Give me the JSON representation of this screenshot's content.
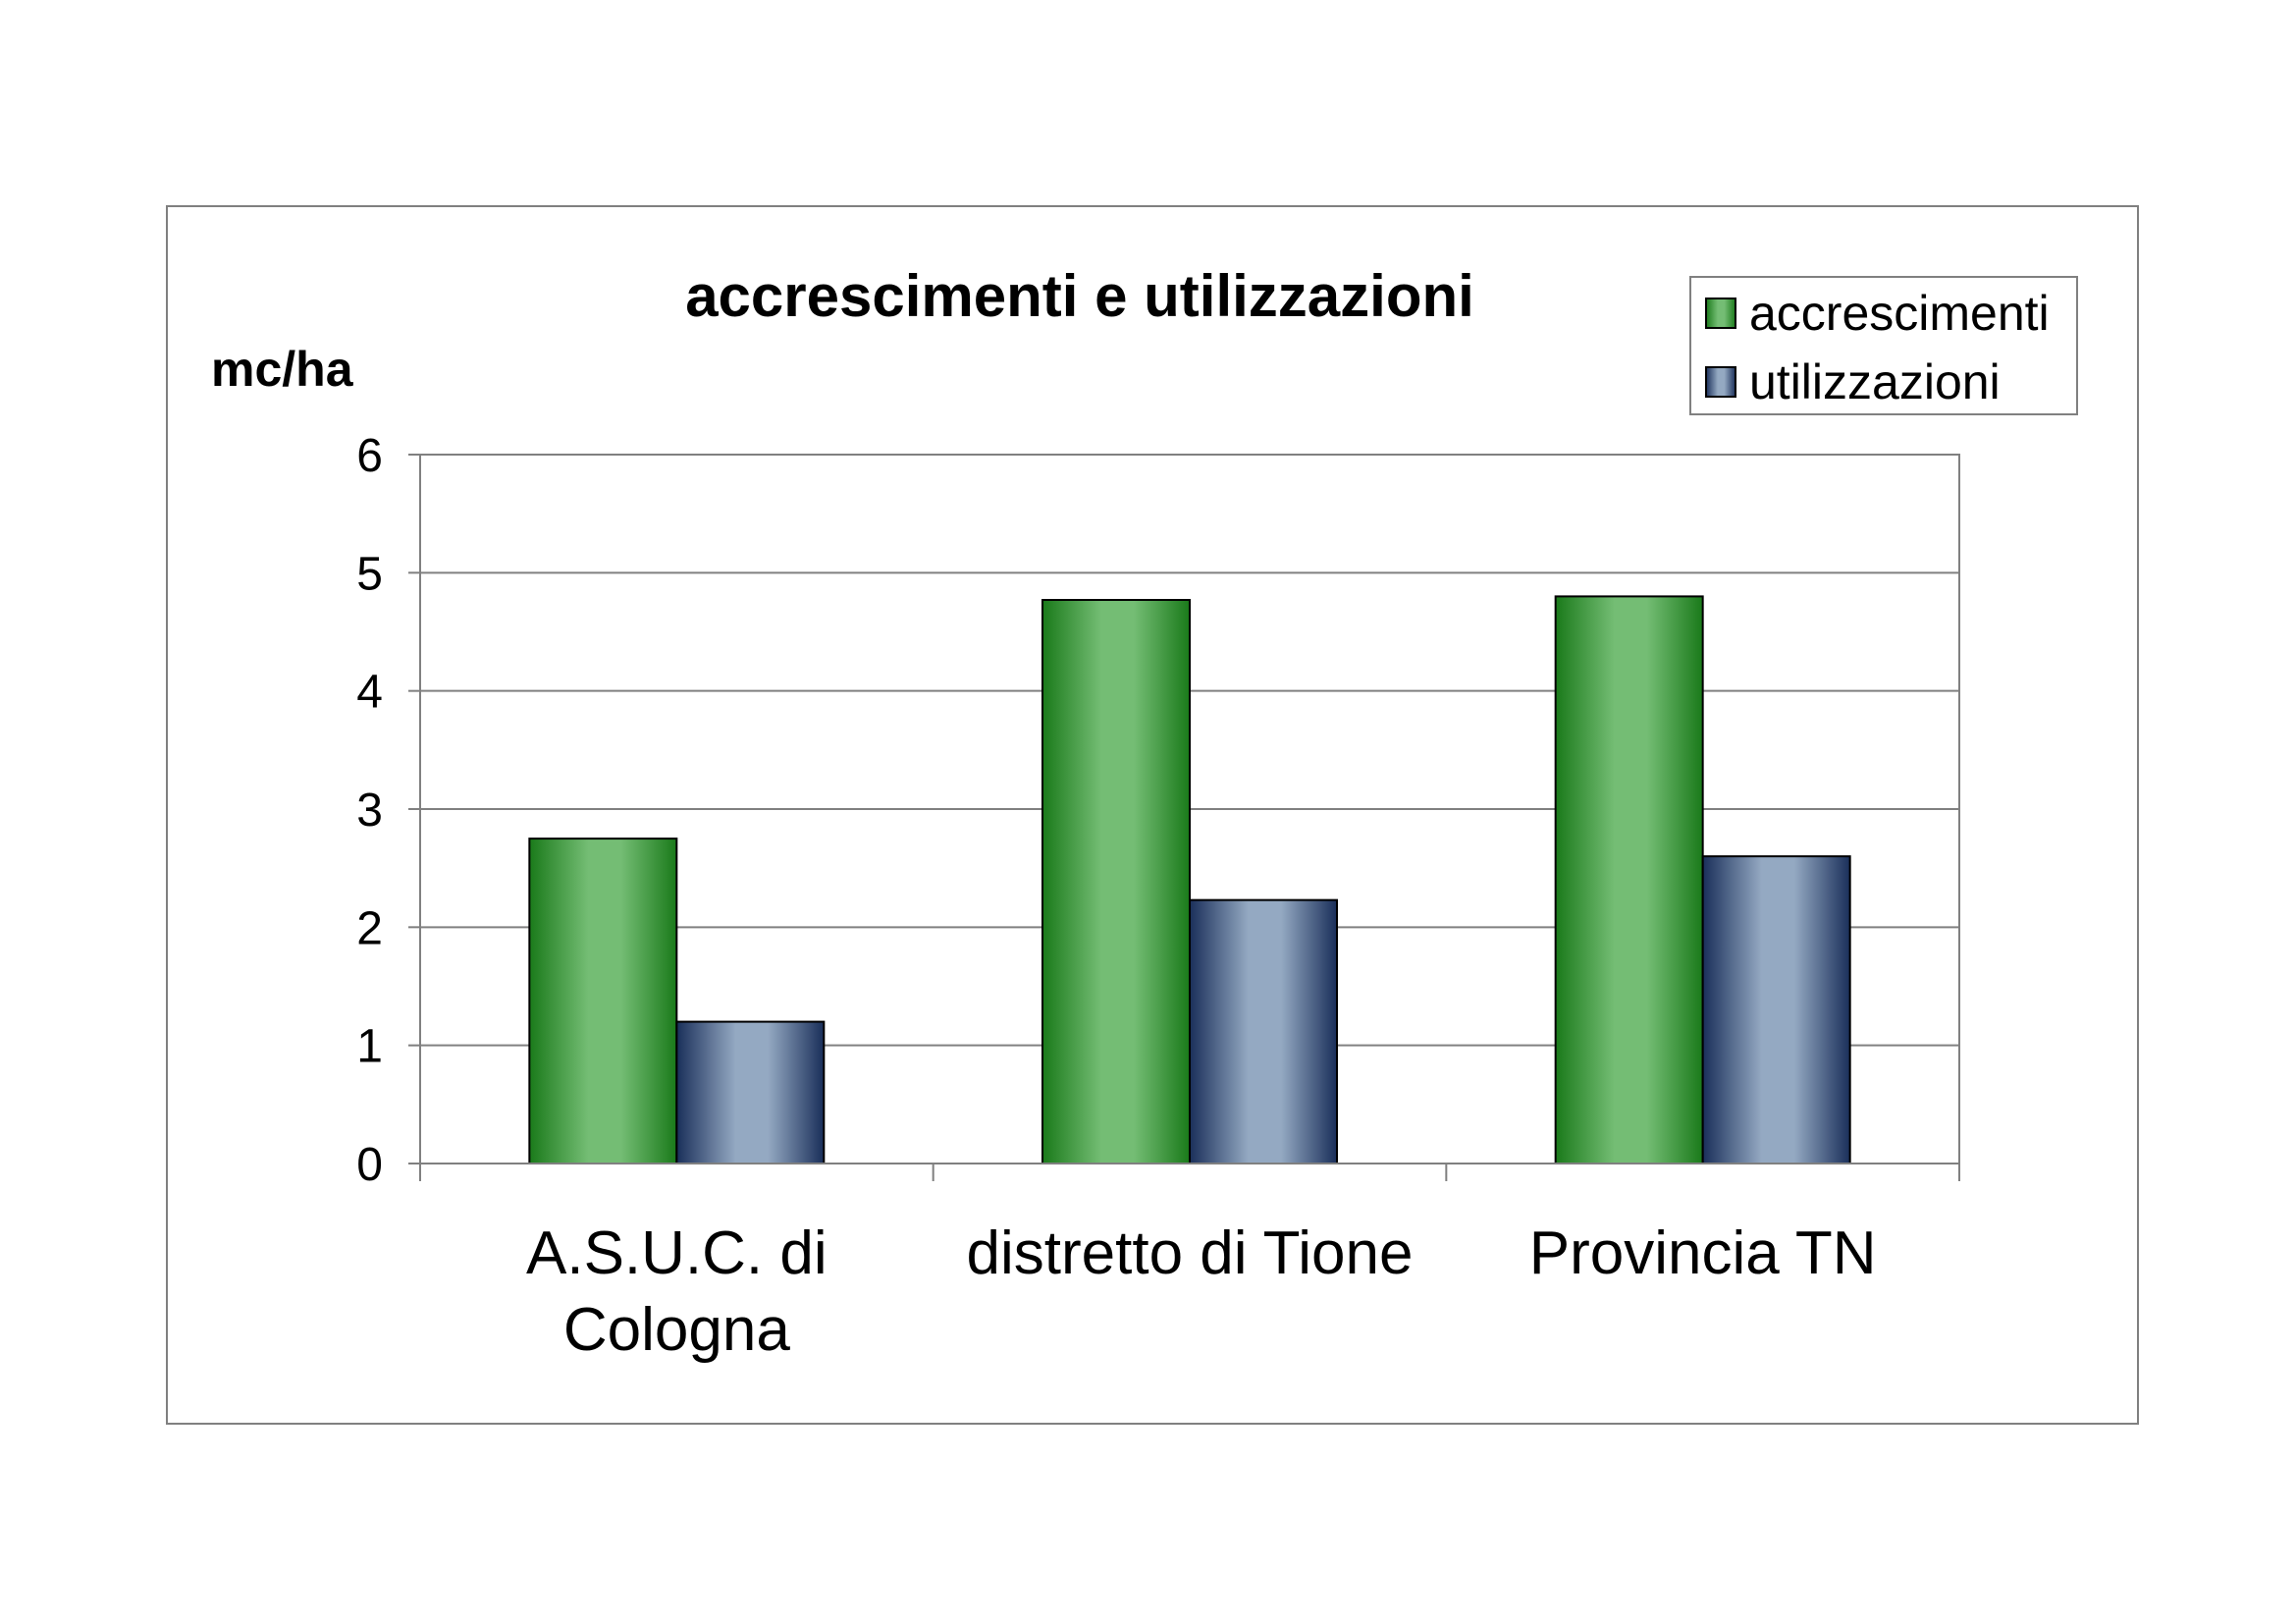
{
  "chart_data": {
    "type": "bar",
    "title": "accrescimenti e utilizzazioni",
    "ylabel": "mc/ha",
    "xlabel": "",
    "ylim": [
      0,
      6
    ],
    "yticks": [
      0,
      1,
      2,
      3,
      4,
      5,
      6
    ],
    "grid": true,
    "legend_position": "top-right",
    "categories": [
      [
        "A.S.U.C. di",
        "Cologna"
      ],
      [
        "distretto di Tione"
      ],
      [
        "Provincia TN"
      ]
    ],
    "series": [
      {
        "name": "accrescimenti",
        "values": [
          2.75,
          4.77,
          4.8
        ],
        "color_dark": "#1a7a1a",
        "color_light": "#74bd74"
      },
      {
        "name": "utilizzazioni",
        "values": [
          1.2,
          2.23,
          2.6
        ],
        "color_dark": "#1a2f5a",
        "color_light": "#94a9c2"
      }
    ]
  }
}
